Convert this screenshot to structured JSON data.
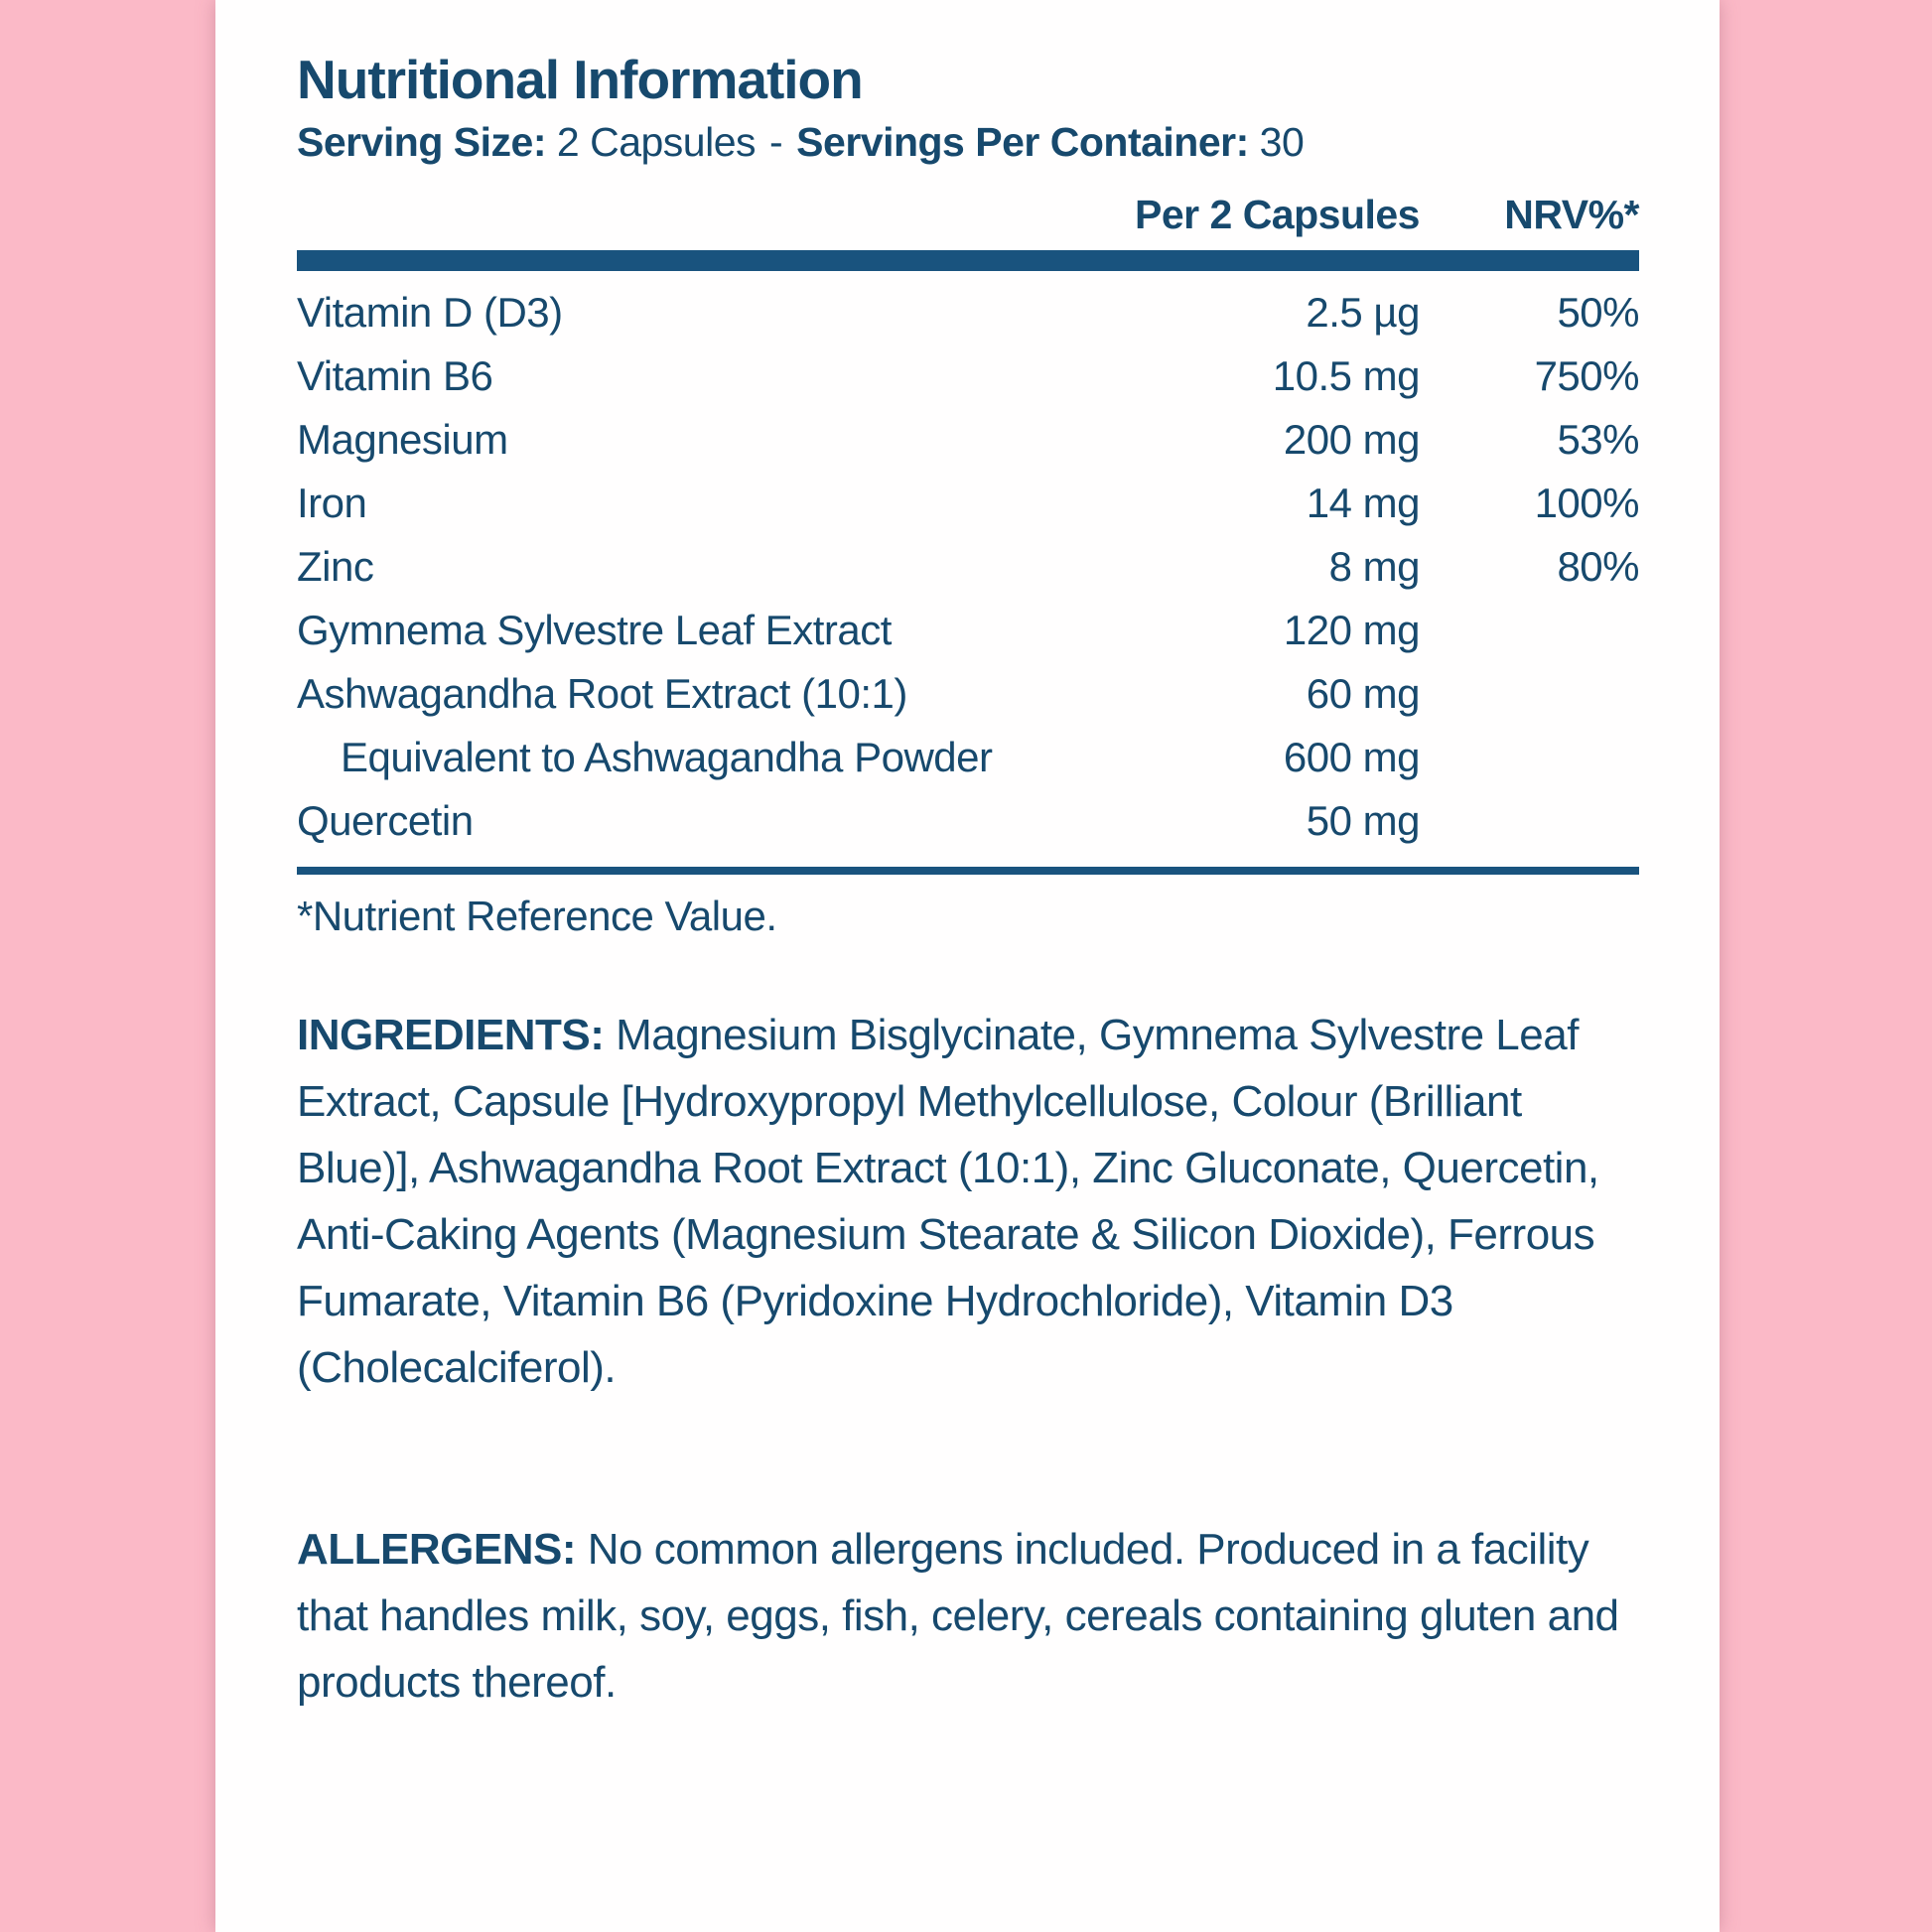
{
  "colors": {
    "background_pink": "#fbb9c7",
    "panel_white": "#fffefe",
    "text_blue": "#17496d",
    "rule_blue": "#19537e"
  },
  "header": {
    "title": "Nutritional Information",
    "serving_size_label": "Serving Size:",
    "serving_size_value": "2 Capsules",
    "separator": "-",
    "servings_label": "Servings Per Container:",
    "servings_value": "30"
  },
  "table": {
    "columns": {
      "amount": "Per 2 Capsules",
      "nrv": "NRV%*"
    },
    "rows": [
      {
        "name": "Vitamin D (D3)",
        "amount": "2.5 µg",
        "nrv": "50%",
        "indent": false
      },
      {
        "name": "Vitamin B6",
        "amount": "10.5 mg",
        "nrv": "750%",
        "indent": false
      },
      {
        "name": "Magnesium",
        "amount": "200 mg",
        "nrv": "53%",
        "indent": false
      },
      {
        "name": "Iron",
        "amount": "14 mg",
        "nrv": "100%",
        "indent": false
      },
      {
        "name": "Zinc",
        "amount": "8 mg",
        "nrv": "80%",
        "indent": false
      },
      {
        "name": "Gymnema Sylvestre Leaf Extract",
        "amount": "120 mg",
        "nrv": "",
        "indent": false
      },
      {
        "name": "Ashwagandha Root Extract (10:1)",
        "amount": "60 mg",
        "nrv": "",
        "indent": false
      },
      {
        "name": "Equivalent to Ashwagandha Powder",
        "amount": "600 mg",
        "nrv": "",
        "indent": true
      },
      {
        "name": "Quercetin",
        "amount": "50 mg",
        "nrv": "",
        "indent": false
      }
    ],
    "footnote": "*Nutrient Reference Value."
  },
  "ingredients": {
    "label": "INGREDIENTS:",
    "text": " Magnesium Bisglycinate, Gymnema Sylvestre Leaf Extract, Capsule [Hydroxypropyl Methylcellulose, Colour (Brilliant Blue)], Ashwagandha Root Extract (10:1), Zinc Gluconate, Quercetin, Anti-Caking Agents (Magnesium Stearate & Silicon Dioxide), Ferrous Fumarate, Vitamin B6 (Pyridoxine Hydrochloride), Vitamin D3 (Cholecalciferol)."
  },
  "allergens": {
    "label": "ALLERGENS:",
    "text": " No common allergens included. Produced in a facility that handles milk, soy, eggs, fish, celery, cereals containing gluten and products thereof."
  }
}
